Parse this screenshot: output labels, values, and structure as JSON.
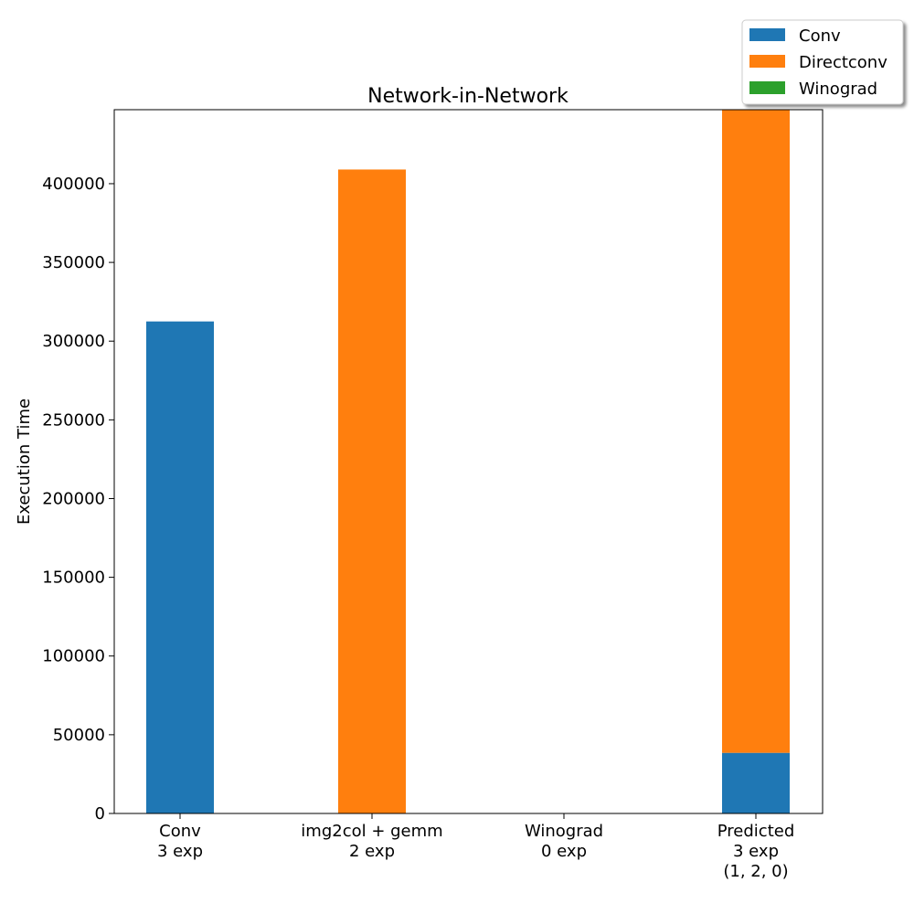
{
  "chart_data": {
    "type": "bar",
    "stacked": true,
    "title": "Network-in-Network",
    "xlabel": "",
    "ylabel": "Execution Time",
    "categories": [
      [
        "Conv",
        "3 exp"
      ],
      [
        "img2col + gemm",
        "2 exp"
      ],
      [
        "Winograd",
        "0 exp"
      ],
      [
        "Predicted",
        "3 exp",
        "(1, 2, 0)"
      ]
    ],
    "series": [
      {
        "name": "Conv",
        "color": "#1f77b4",
        "values": [
          312500,
          0,
          0,
          38500
        ]
      },
      {
        "name": "Directconv",
        "color": "#ff7f0e",
        "values": [
          0,
          409000,
          0,
          409000
        ]
      },
      {
        "name": "Winograd",
        "color": "#2ca02c",
        "values": [
          0,
          0,
          0,
          0
        ]
      }
    ],
    "ylim": [
      0,
      447000
    ],
    "yticks": [
      0,
      50000,
      100000,
      150000,
      200000,
      250000,
      300000,
      350000,
      400000
    ],
    "ytick_labels": [
      "0",
      "50000",
      "100000",
      "150000",
      "200000",
      "250000",
      "300000",
      "350000",
      "400000"
    ],
    "grid": false,
    "legend_position": "top-right"
  }
}
